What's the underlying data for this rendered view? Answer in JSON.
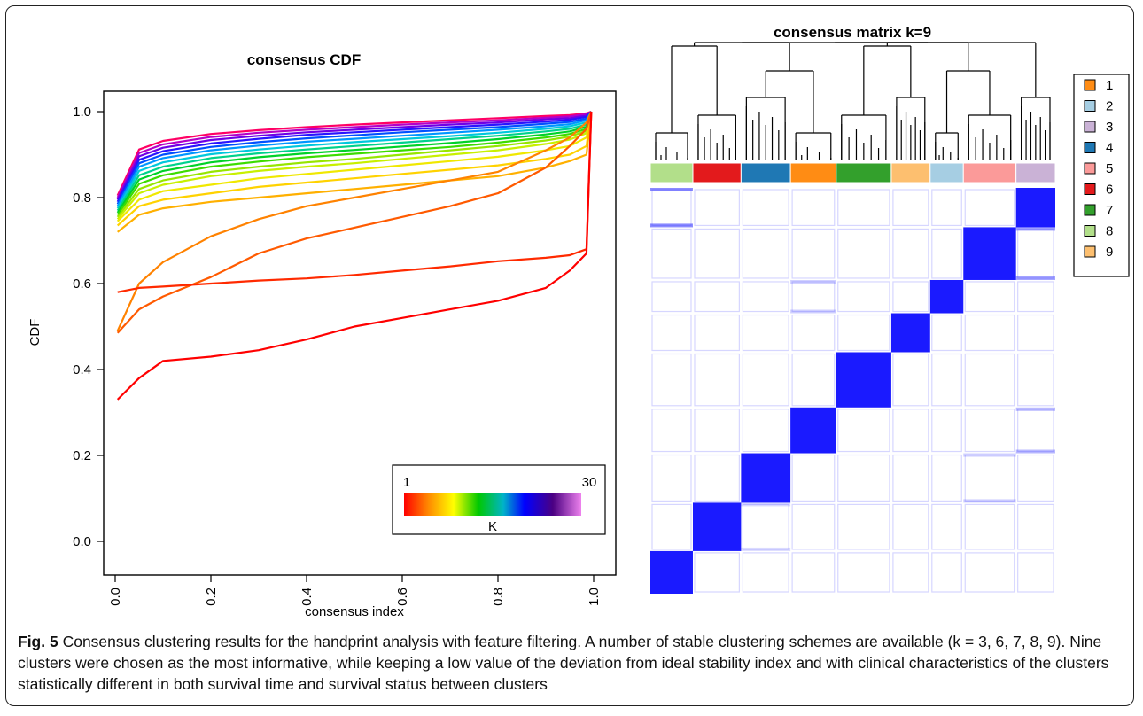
{
  "figure": {
    "label": "Fig. 5",
    "caption": "Consensus clustering results for the handprint analysis with feature filtering. A number of stable clustering schemes are available (k = 3, 6, 7, 8, 9). Nine clusters were chosen as the most informative, while keeping a low value of the deviation from ideal stability index and with clinical characteristics of the clusters statistically different in both survival time and survival status between clusters"
  },
  "colors": {
    "matrix_blue": "#1a1aff",
    "frame": "#222222"
  },
  "chart_data": [
    {
      "type": "line",
      "title": "consensus CDF",
      "xlabel": "consensus index",
      "ylabel": "CDF",
      "xlim": [
        0,
        1
      ],
      "ylim": [
        -0.05,
        1.05
      ],
      "xticks": [
        "0.0",
        "0.2",
        "0.4",
        "0.6",
        "0.8",
        "1.0"
      ],
      "yticks": [
        "0.0",
        "0.2",
        "0.4",
        "0.6",
        "0.8",
        "1.0"
      ],
      "legend": {
        "position": "bottom-right",
        "min_label": "1",
        "max_label": "30",
        "title": "K",
        "kind": "color-gradient"
      },
      "x": [
        0.005,
        0.05,
        0.1,
        0.2,
        0.3,
        0.4,
        0.5,
        0.6,
        0.7,
        0.8,
        0.9,
        0.95,
        0.985,
        0.995
      ],
      "series": [
        {
          "k": 2,
          "color": "#ff0000",
          "values": [
            0.33,
            0.38,
            0.42,
            0.43,
            0.445,
            0.47,
            0.5,
            0.52,
            0.54,
            0.56,
            0.59,
            0.63,
            0.67,
            1.0
          ]
        },
        {
          "k": 3,
          "color": "#ff2a00",
          "values": [
            0.58,
            0.59,
            0.593,
            0.6,
            0.607,
            0.612,
            0.62,
            0.63,
            0.64,
            0.652,
            0.66,
            0.666,
            0.68,
            1.0
          ]
        },
        {
          "k": 4,
          "color": "#ff5a00",
          "values": [
            0.485,
            0.54,
            0.57,
            0.615,
            0.67,
            0.705,
            0.73,
            0.755,
            0.78,
            0.81,
            0.87,
            0.92,
            0.96,
            1.0
          ]
        },
        {
          "k": 5,
          "color": "#ff8200",
          "values": [
            0.49,
            0.6,
            0.65,
            0.71,
            0.75,
            0.78,
            0.8,
            0.82,
            0.84,
            0.86,
            0.91,
            0.94,
            0.975,
            1.0
          ]
        },
        {
          "k": 6,
          "color": "#ffb000",
          "values": [
            0.72,
            0.76,
            0.775,
            0.79,
            0.8,
            0.81,
            0.82,
            0.83,
            0.84,
            0.85,
            0.87,
            0.885,
            0.9,
            1.0
          ]
        },
        {
          "k": 7,
          "color": "#ffd200",
          "values": [
            0.735,
            0.78,
            0.795,
            0.81,
            0.825,
            0.835,
            0.845,
            0.855,
            0.865,
            0.875,
            0.89,
            0.9,
            0.92,
            1.0
          ]
        },
        {
          "k": 8,
          "color": "#f0e800",
          "values": [
            0.745,
            0.795,
            0.815,
            0.83,
            0.845,
            0.855,
            0.865,
            0.875,
            0.885,
            0.895,
            0.91,
            0.92,
            0.94,
            1.0
          ]
        },
        {
          "k": 9,
          "color": "#c8f000",
          "values": [
            0.75,
            0.81,
            0.83,
            0.85,
            0.862,
            0.872,
            0.88,
            0.89,
            0.9,
            0.91,
            0.925,
            0.935,
            0.95,
            1.0
          ]
        },
        {
          "k": 10,
          "color": "#96e600",
          "values": [
            0.755,
            0.82,
            0.84,
            0.86,
            0.872,
            0.882,
            0.89,
            0.9,
            0.91,
            0.92,
            0.933,
            0.942,
            0.955,
            1.0
          ]
        },
        {
          "k": 12,
          "color": "#3cdc00",
          "values": [
            0.76,
            0.832,
            0.852,
            0.872,
            0.884,
            0.894,
            0.902,
            0.91,
            0.918,
            0.928,
            0.94,
            0.948,
            0.96,
            1.0
          ]
        },
        {
          "k": 14,
          "color": "#00d228",
          "values": [
            0.765,
            0.842,
            0.862,
            0.882,
            0.894,
            0.903,
            0.911,
            0.919,
            0.927,
            0.936,
            0.947,
            0.954,
            0.965,
            1.0
          ]
        },
        {
          "k": 16,
          "color": "#00d28c",
          "values": [
            0.77,
            0.852,
            0.872,
            0.892,
            0.903,
            0.912,
            0.92,
            0.928,
            0.936,
            0.944,
            0.954,
            0.96,
            0.97,
            1.0
          ]
        },
        {
          "k": 18,
          "color": "#00c8dc",
          "values": [
            0.775,
            0.862,
            0.882,
            0.901,
            0.912,
            0.921,
            0.929,
            0.936,
            0.943,
            0.951,
            0.96,
            0.966,
            0.975,
            1.0
          ]
        },
        {
          "k": 20,
          "color": "#0096ff",
          "values": [
            0.78,
            0.872,
            0.892,
            0.91,
            0.921,
            0.93,
            0.937,
            0.944,
            0.951,
            0.958,
            0.966,
            0.971,
            0.98,
            1.0
          ]
        },
        {
          "k": 22,
          "color": "#0050ff",
          "values": [
            0.785,
            0.88,
            0.9,
            0.918,
            0.929,
            0.938,
            0.945,
            0.952,
            0.958,
            0.964,
            0.972,
            0.976,
            0.984,
            1.0
          ]
        },
        {
          "k": 24,
          "color": "#2814ff",
          "values": [
            0.79,
            0.888,
            0.908,
            0.926,
            0.937,
            0.946,
            0.952,
            0.958,
            0.964,
            0.97,
            0.977,
            0.981,
            0.988,
            1.0
          ]
        },
        {
          "k": 26,
          "color": "#6e00e6",
          "values": [
            0.795,
            0.896,
            0.916,
            0.934,
            0.944,
            0.952,
            0.958,
            0.964,
            0.97,
            0.975,
            0.982,
            0.985,
            0.991,
            1.0
          ]
        },
        {
          "k": 28,
          "color": "#b400c8",
          "values": [
            0.8,
            0.904,
            0.924,
            0.941,
            0.951,
            0.958,
            0.964,
            0.97,
            0.975,
            0.98,
            0.986,
            0.989,
            0.994,
            1.0
          ]
        },
        {
          "k": 30,
          "color": "#ff0064",
          "values": [
            0.805,
            0.912,
            0.932,
            0.948,
            0.957,
            0.964,
            0.97,
            0.975,
            0.98,
            0.985,
            0.99,
            0.992,
            0.996,
            1.0
          ]
        }
      ]
    },
    {
      "type": "heatmap",
      "title": "consensus matrix k=9",
      "legend": {
        "position": "right",
        "entries": [
          "1",
          "2",
          "3",
          "4",
          "5",
          "6",
          "7",
          "8",
          "9"
        ]
      },
      "cluster_colors": [
        "#ff8c14",
        "#a6cee3",
        "#cab2d6",
        "#1f78b4",
        "#fb9a99",
        "#e31a1c",
        "#33a02c",
        "#b2df8a",
        "#fdbf6f"
      ],
      "column_order": [
        8,
        6,
        4,
        1,
        7,
        9,
        2,
        5,
        3
      ],
      "column_fractions": [
        0.105,
        0.119,
        0.122,
        0.113,
        0.136,
        0.096,
        0.082,
        0.13,
        0.097
      ],
      "diagonal_value": 1.0,
      "offdiagonal_stripes": [
        {
          "rows": "3",
          "cols": "8",
          "value": 0.25
        },
        {
          "rows": "5",
          "cols": "3",
          "value": 0.2
        },
        {
          "rows": "1",
          "cols": "3",
          "value": 0.15
        },
        {
          "rows": "2",
          "cols": "1",
          "value": 0.1
        },
        {
          "rows": "4",
          "cols": "5",
          "value": 0.1
        },
        {
          "rows": "6",
          "cols": "4",
          "value": 0.08
        }
      ]
    }
  ]
}
